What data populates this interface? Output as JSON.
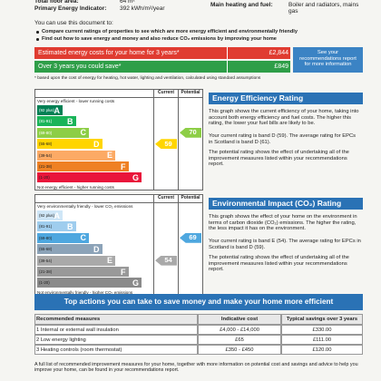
{
  "property": {
    "rows": [
      {
        "label": "Total floor area:",
        "value": "64 m²"
      },
      {
        "label": "Primary Energy Indicator:",
        "value": "392 kWh/m²/year"
      }
    ],
    "heating": {
      "label": "Main heating and fuel:",
      "value": "Boiler and radiators, mains gas"
    }
  },
  "intro": {
    "title": "You can use this document to:",
    "bullets": [
      "Compare current ratings of properties to see which are more energy efficient and environmentally friendly",
      "Find out how to save energy and money and also reduce CO₂ emissions by improving your home"
    ]
  },
  "costs": {
    "rows": [
      {
        "label": "Estimated energy costs for your home for 3 years*",
        "value": "£2,844"
      },
      {
        "label": "Over 3 years you could save*",
        "value": "£849"
      }
    ],
    "note": "See your recommendations report for more information",
    "footnote": "* based upon the cost of energy for heating, hot water, lighting and ventilation, calculated using standard assumptions"
  },
  "ratings": [
    {
      "title": "Energy Efficiency Rating",
      "paragraphs": [
        "This graph shows the current efficiency of your home, taking into account both energy efficiency and fuel costs. The higher this rating, the lower your fuel bills are likely to be.",
        "Your current rating is band D (59). The average rating for EPCs in Scotland is band D (61).",
        "The potential rating shows the effect of undertaking all of the improvement measures listed within your recommendations report."
      ],
      "chart": {
        "col_current": "Current",
        "col_potential": "Potential",
        "top": "Very energy efficient - lower running costs",
        "bottom": "Not energy efficient - higher running costs",
        "colors": [
          "#008054",
          "#19b459",
          "#8dce46",
          "#ffd500",
          "#fcaa65",
          "#ef8023",
          "#e9153b"
        ],
        "bands": [
          {
            "range": "(92 plus)",
            "letter": "A"
          },
          {
            "range": "(81-91)",
            "letter": "B"
          },
          {
            "range": "(69-80)",
            "letter": "C"
          },
          {
            "range": "(55-68)",
            "letter": "D"
          },
          {
            "range": "(39-54)",
            "letter": "E"
          },
          {
            "range": "(21-38)",
            "letter": "F"
          },
          {
            "range": "(1-20)",
            "letter": "G"
          }
        ],
        "current": 59,
        "potential": 70
      }
    },
    {
      "title": "Environmental Impact (CO₂) Rating",
      "paragraphs": [
        "This graph shows the effect of your home on the environment in terms of carbon dioxide (CO₂) emissions. The higher the rating, the less impact it has on the environment.",
        "Your current rating is band E (54). The average rating for EPCs in Scotland is band D (59).",
        "The potential rating shows the effect of undertaking all of the improvement measures listed within your recommendations report."
      ],
      "chart": {
        "col_current": "Current",
        "col_potential": "Potential",
        "top": "Very environmentally friendly - lower CO₂ emissions",
        "bottom": "Not environmentally friendly - higher CO₂ emissions",
        "colors": [
          "#cfe6f7",
          "#9fcdee",
          "#4ea7df",
          "#8ca3b8",
          "#a9a9a9",
          "#999999",
          "#8a8a8a"
        ],
        "bands": [
          {
            "range": "(92 plus)",
            "letter": "A"
          },
          {
            "range": "(81-91)",
            "letter": "B"
          },
          {
            "range": "(69-80)",
            "letter": "C"
          },
          {
            "range": "(55-68)",
            "letter": "D"
          },
          {
            "range": "(39-54)",
            "letter": "E"
          },
          {
            "range": "(21-38)",
            "letter": "F"
          },
          {
            "range": "(1-20)",
            "letter": "G"
          }
        ],
        "current": 54,
        "potential": 69
      }
    }
  ],
  "actions": {
    "title": "Top actions you can take to save money and make your home more efficient",
    "headers": [
      "Recommended measures",
      "Indicative cost",
      "Typical savings over 3 years"
    ],
    "rows": [
      [
        "1 Internal or external wall insulation",
        "£4,000 - £14,000",
        "£330.00"
      ],
      [
        "2 Low energy lighting",
        "£65",
        "£111.00"
      ],
      [
        "3 Heating controls (room thermostat)",
        "£350 - £450",
        "£120.00"
      ]
    ],
    "footer": "A full list of recommended improvement measures for your home, together with more information on potential cost and savings and advice to help you improve your home, can be found in your recommendations report."
  }
}
